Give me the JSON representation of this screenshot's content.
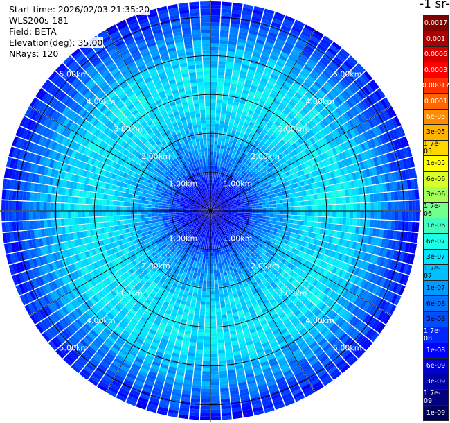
{
  "header": {
    "start_time": "Start time: 2026/02/03 21:35:20",
    "instrument": "WLS200s-181",
    "field": "Field: BETA",
    "elevation": "Elevation(deg): 35.00",
    "nrays": "NRays: 120"
  },
  "colorbar": {
    "title": "-1 sr-",
    "ticks": [
      {
        "label": "0.0017",
        "color": "#800000"
      },
      {
        "label": "0.001",
        "color": "#aa0000"
      },
      {
        "label": "0.0006",
        "color": "#d40000"
      },
      {
        "label": "0.0003",
        "color": "#ff0000"
      },
      {
        "label": "0.00017",
        "color": "#ff3300"
      },
      {
        "label": "0.0001",
        "color": "#ff6600"
      },
      {
        "label": "6e-05",
        "color": "#ff8c00"
      },
      {
        "label": "3e-05",
        "color": "#ffb300"
      },
      {
        "label": "1.7e-05",
        "color": "#ffd700"
      },
      {
        "label": "1e-05",
        "color": "#ffff00"
      },
      {
        "label": "6e-06",
        "color": "#d8ff26"
      },
      {
        "label": "3e-06",
        "color": "#a6ff59"
      },
      {
        "label": "1.7e-06",
        "color": "#73ff8c"
      },
      {
        "label": "1e-06",
        "color": "#40ffbf"
      },
      {
        "label": "6e-07",
        "color": "#1affe5"
      },
      {
        "label": "3e-07",
        "color": "#00e5ff"
      },
      {
        "label": "1.7e-07",
        "color": "#00bfff"
      },
      {
        "label": "1e-07",
        "color": "#0099ff"
      },
      {
        "label": "6e-08",
        "color": "#0073ff"
      },
      {
        "label": "3e-08",
        "color": "#004dff"
      },
      {
        "label": "1.7e-08",
        "color": "#0026ff"
      },
      {
        "label": "1e-08",
        "color": "#0000ff"
      },
      {
        "label": "6e-09",
        "color": "#0000d0"
      },
      {
        "label": "3e-09",
        "color": "#0000a8"
      },
      {
        "label": "1.7e-09",
        "color": "#000080"
      },
      {
        "label": "1e-09",
        "color": "#00005a"
      }
    ]
  },
  "chart_data": {
    "type": "heatmap",
    "projection": "polar PPI",
    "n_rays": 120,
    "max_range_km": 5.4,
    "range_rings_km": [
      1,
      2,
      3,
      4,
      5
    ],
    "ring_labels": [
      "1.00km",
      "2.00km",
      "3.00km",
      "4.00km",
      "5.00km"
    ],
    "spokes_deg": [
      0,
      30,
      60,
      90,
      120,
      150,
      180,
      210,
      240,
      270,
      300,
      330
    ],
    "color_scale": "log",
    "value_range": [
      1e-09,
      0.0017
    ],
    "range_profile_log10": [
      [
        0.2,
        -8.3
      ],
      [
        0.5,
        -8.0
      ],
      [
        0.9,
        -7.75
      ],
      [
        1.2,
        -7.35
      ],
      [
        1.6,
        -7.0
      ],
      [
        2.0,
        -6.8
      ],
      [
        2.4,
        -6.6
      ],
      [
        2.8,
        -6.5
      ],
      [
        3.2,
        -6.5
      ],
      [
        3.6,
        -6.55
      ],
      [
        4.0,
        -6.75
      ],
      [
        4.5,
        -7.1
      ],
      [
        5.0,
        -7.6
      ],
      [
        5.4,
        -7.9
      ]
    ]
  }
}
